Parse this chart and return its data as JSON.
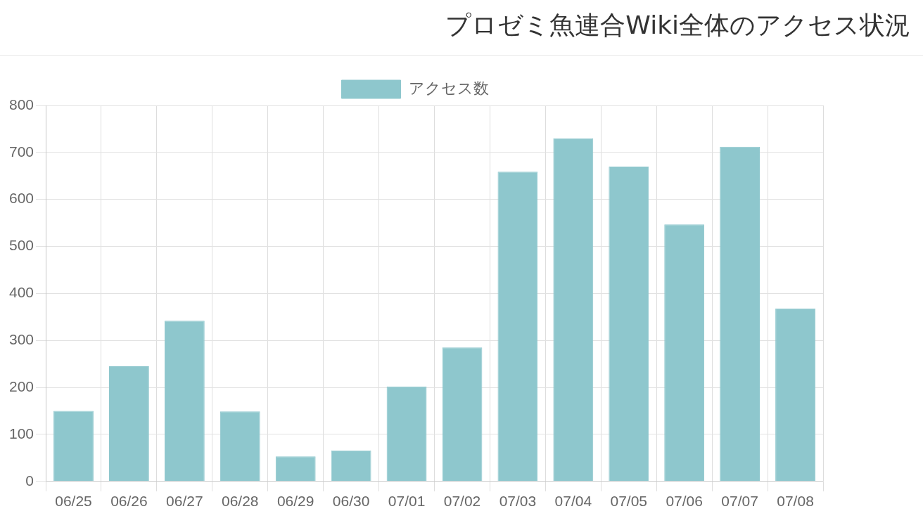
{
  "chart_data": {
    "type": "bar",
    "title": "プロゼミ魚連合Wiki全体のアクセス状況",
    "categories": [
      "06/25",
      "06/26",
      "06/27",
      "06/28",
      "06/29",
      "06/30",
      "07/01",
      "07/02",
      "07/03",
      "07/04",
      "07/05",
      "07/06",
      "07/07",
      "07/08"
    ],
    "series": [
      {
        "name": "アクセス数",
        "color": "#8ec7cd",
        "values": [
          150,
          245,
          342,
          149,
          53,
          66,
          202,
          285,
          659,
          730,
          670,
          547,
          712,
          368
        ]
      }
    ],
    "ylim": [
      0,
      800
    ],
    "yticks": [
      0,
      100,
      200,
      300,
      400,
      500,
      600,
      700,
      800
    ],
    "grid": true,
    "legend": "top"
  }
}
